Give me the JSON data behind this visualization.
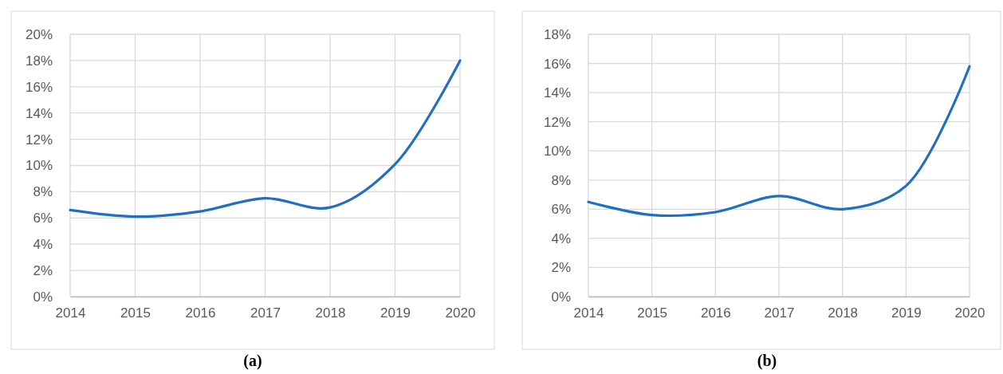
{
  "chart_data": [
    {
      "type": "line",
      "categories": [
        "2014",
        "2015",
        "2016",
        "2017",
        "2018",
        "2019",
        "2020"
      ],
      "series": [
        {
          "color": "#1f70c4",
          "values": [
            6.6,
            6.1,
            6.5,
            7.5,
            6.8,
            10.1,
            18.0
          ]
        }
      ],
      "ylim": [
        0,
        20
      ],
      "yticks": [
        {
          "value": 0,
          "label": "0%"
        },
        {
          "value": 2,
          "label": "2%"
        },
        {
          "value": 4,
          "label": "4%"
        },
        {
          "value": 6,
          "label": "6%"
        },
        {
          "value": 8,
          "label": "8%"
        },
        {
          "value": 10,
          "label": "10%"
        },
        {
          "value": 12,
          "label": "12%"
        },
        {
          "value": 14,
          "label": "14%"
        },
        {
          "value": 16,
          "label": "16%"
        },
        {
          "value": 18,
          "label": "18%"
        },
        {
          "value": 20,
          "label": "20%"
        }
      ],
      "grid": true,
      "annotations": [
        "(a)"
      ]
    },
    {
      "type": "line",
      "categories": [
        "2014",
        "2015",
        "2016",
        "2017",
        "2018",
        "2019",
        "2020"
      ],
      "series": [
        {
          "color": "#1f70c4",
          "values": [
            6.5,
            5.6,
            5.8,
            6.9,
            6.0,
            7.6,
            15.8
          ]
        }
      ],
      "ylim": [
        0,
        18
      ],
      "yticks": [
        {
          "value": 0,
          "label": "0%"
        },
        {
          "value": 2,
          "label": "2%"
        },
        {
          "value": 4,
          "label": "4%"
        },
        {
          "value": 6,
          "label": "6%"
        },
        {
          "value": 8,
          "label": "8%"
        },
        {
          "value": 10,
          "label": "10%"
        },
        {
          "value": 12,
          "label": "12%"
        },
        {
          "value": 14,
          "label": "14%"
        },
        {
          "value": 16,
          "label": "16%"
        },
        {
          "value": 18,
          "label": "18%"
        }
      ],
      "grid": true,
      "annotations": [
        "(b)"
      ]
    }
  ]
}
